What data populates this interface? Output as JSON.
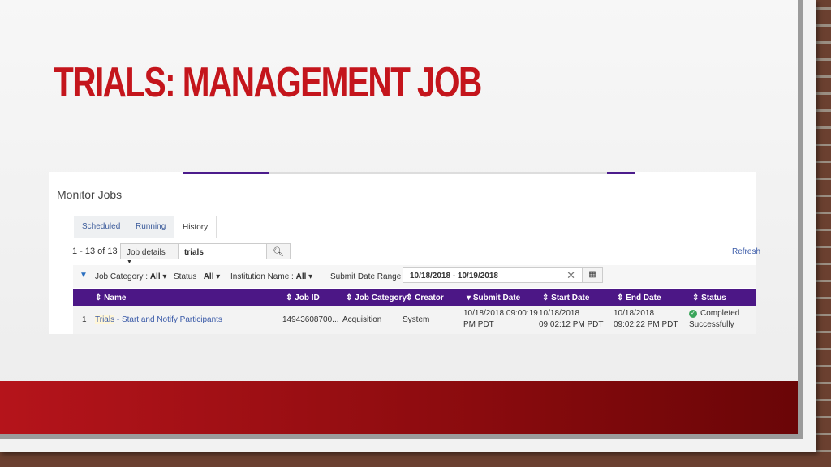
{
  "slide": {
    "title": "TRIALS: MANAGEMENT JOB"
  },
  "page": {
    "title": "Monitor Jobs",
    "tabs": [
      {
        "label": "Scheduled"
      },
      {
        "label": "Running"
      },
      {
        "label": "History",
        "active": true
      }
    ],
    "count": "1 - 13 of 13",
    "search": {
      "scope": "Job details",
      "value": "trials"
    },
    "refresh": "Refresh",
    "filters": {
      "job_category": "Job Category :",
      "job_category_value": "All",
      "status": "Status :",
      "status_value": "All",
      "institution": "Institution Name :",
      "institution_value": "All",
      "date_label": "Submit Date Range",
      "date_value": "10/18/2018 - 10/19/2018"
    },
    "columns": [
      "Name",
      "Job ID",
      "Job Category",
      "Creator",
      "Submit Date",
      "Start Date",
      "End Date",
      "Status"
    ],
    "rows": [
      {
        "num": "1",
        "name_highlight": "Trials",
        "name_rest": " - Start and Notify Participants",
        "job_id": "14943608700...",
        "category": "Acquisition",
        "creator": "System",
        "submit_1": "10/18/2018 09:00:19",
        "submit_2": "PM PDT",
        "start_1": "10/18/2018",
        "start_2": "09:02:12 PM PDT",
        "end_1": "10/18/2018",
        "end_2": "09:02:22 PM PDT",
        "status_1": "Completed",
        "status_2": "Successfully"
      }
    ]
  },
  "colors": {
    "accent": "#4c1786",
    "title": "#c4151c",
    "band": "#a80f15",
    "success": "#3aa55a"
  }
}
